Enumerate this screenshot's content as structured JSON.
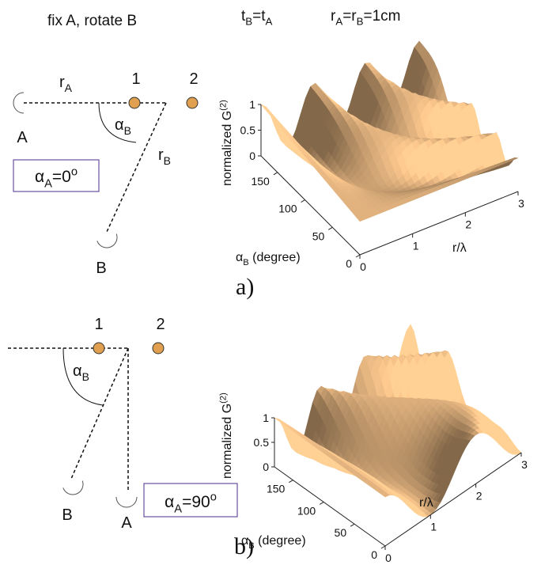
{
  "header": {
    "title": "fix A, rotate B",
    "time_condition": [
      "t",
      "B",
      "=t",
      "A"
    ],
    "distance_condition": [
      "r",
      "A",
      "=r",
      "B",
      "=1cm"
    ]
  },
  "panels": [
    {
      "diagram": {
        "source_1": "1",
        "source_2": "2",
        "detector_a": "A",
        "detector_b": "B",
        "r_a": [
          "r",
          "A"
        ],
        "r_b": [
          "r",
          "B"
        ],
        "alpha_b": [
          "α",
          "B"
        ],
        "alpha_a": [
          "α",
          "A",
          "=0",
          "o"
        ]
      },
      "plot": {
        "z_label": [
          "normalized G",
          "(2)"
        ],
        "z_ticks": [
          0,
          0.5,
          1
        ],
        "alpha_label": [
          "α",
          "B",
          " (degree)"
        ],
        "alpha_ticks": [
          0,
          50,
          100,
          150
        ],
        "r_label": "r/λ",
        "r_ticks": [
          0,
          1,
          2,
          3
        ]
      },
      "caption": "a)"
    },
    {
      "diagram": {
        "source_1": "1",
        "source_2": "2",
        "detector_a": "A",
        "detector_b": "B",
        "alpha_b": [
          "α",
          "B"
        ],
        "alpha_a": [
          "α",
          "A",
          "=90",
          "o"
        ]
      },
      "plot": {
        "z_label": [
          "normalized G",
          "(2)"
        ],
        "z_ticks": [
          0,
          0.5,
          1
        ],
        "alpha_label": [
          "α",
          "B",
          " (degree)"
        ],
        "alpha_ticks": [
          0,
          50,
          100,
          150
        ],
        "r_label": "r/λ",
        "r_ticks": [
          0,
          1,
          2,
          3
        ]
      },
      "caption": "b)"
    }
  ]
}
